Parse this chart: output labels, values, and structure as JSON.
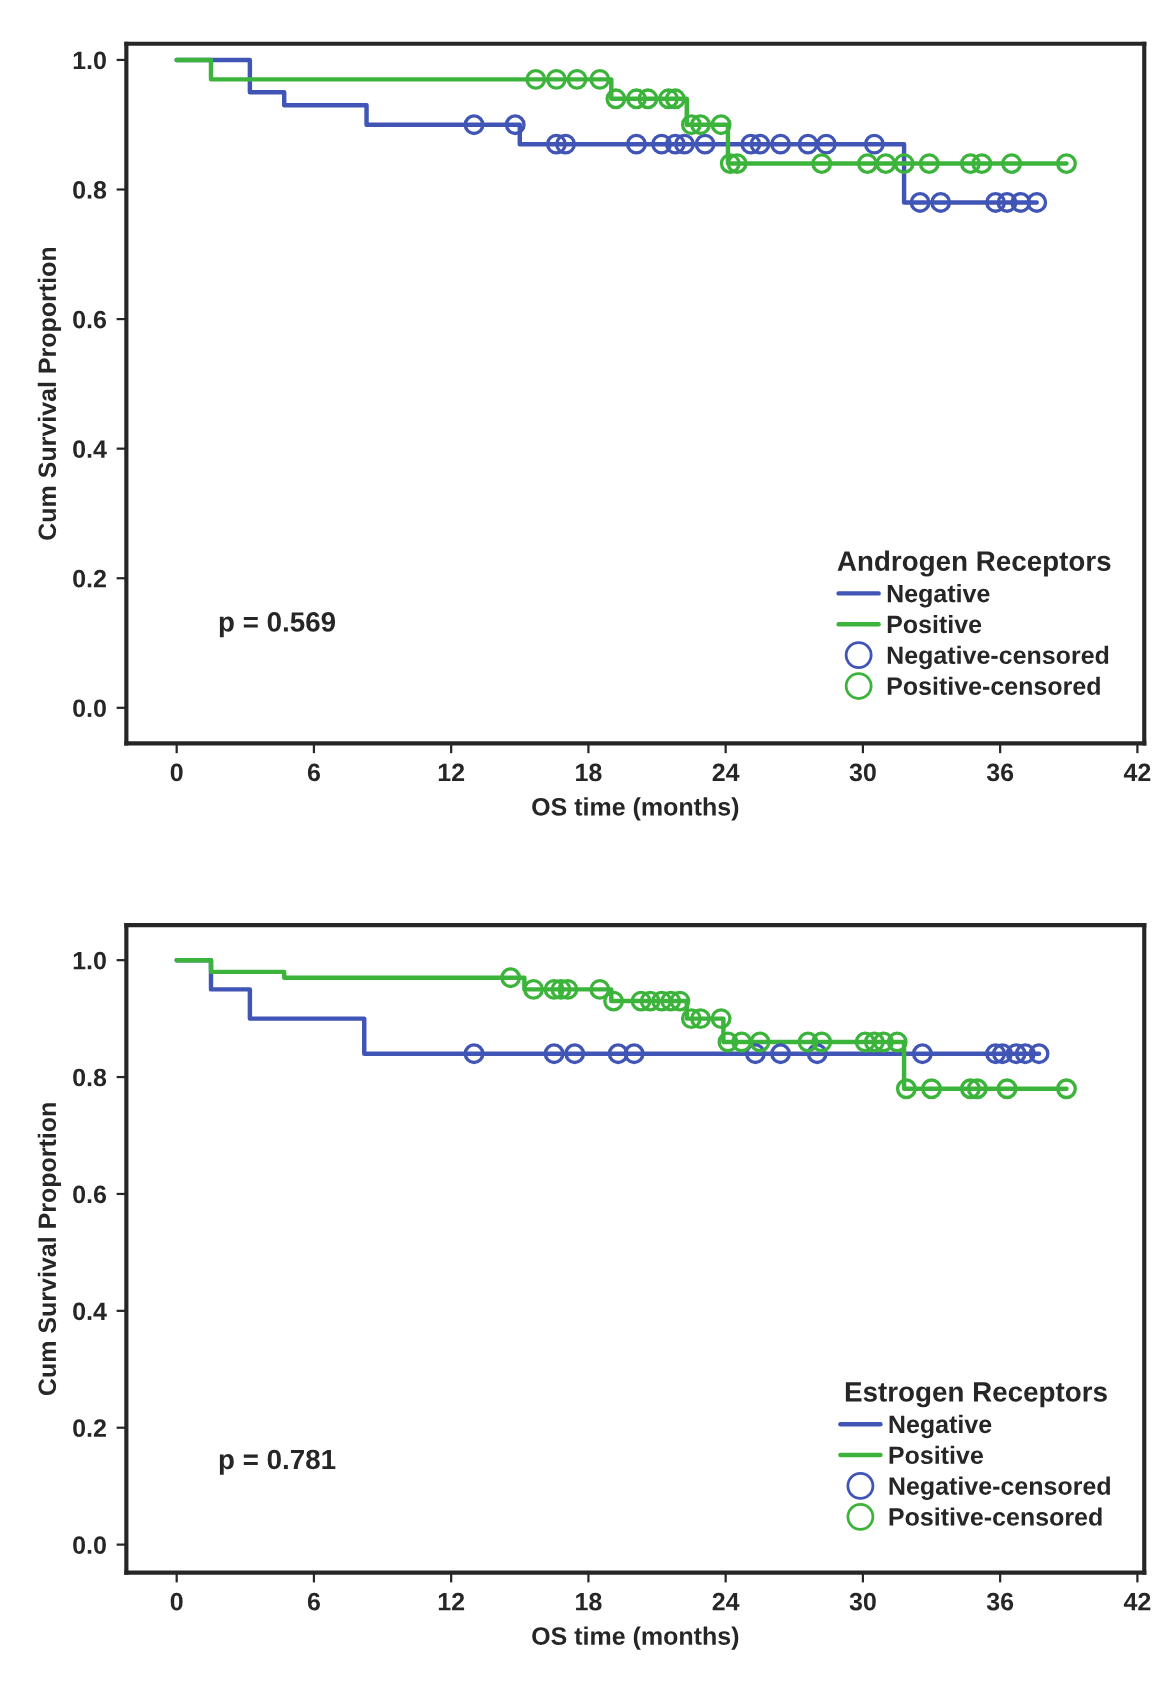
{
  "chart_data": [
    {
      "type": "step",
      "xlabel": "OS time (months)",
      "ylabel": "Cum Survival Proportion",
      "legend_title": "Androgen Receptors",
      "legend": "bottom right",
      "annotations": [
        "p = 0.569"
      ],
      "xlim": [
        -2.2,
        42.3
      ],
      "xticks": [
        0,
        6,
        12,
        18,
        24,
        30,
        36,
        42
      ],
      "ylim": [
        -0.055,
        1.025
      ],
      "yticks": [
        {
          "value": 0,
          "label": "0.0"
        },
        {
          "value": 0.2,
          "label": "0.2"
        },
        {
          "value": 0.4,
          "label": "0.4"
        },
        {
          "value": 0.6,
          "label": "0.6"
        },
        {
          "value": 0.8,
          "label": "0.8"
        },
        {
          "value": 1,
          "label": "1.0"
        }
      ],
      "series": [
        {
          "name": "Negative",
          "color": "#4055b5",
          "x": [
            0,
            3.2,
            4.7,
            8.3,
            15.0,
            31.8,
            37.6
          ],
          "values": [
            1.0,
            0.95,
            0.93,
            0.9,
            0.87,
            0.78,
            0.78
          ]
        },
        {
          "name": "Positive",
          "color": "#3cb43c",
          "x": [
            0,
            1.5,
            19.0,
            22.3,
            24.1,
            38.9
          ],
          "values": [
            1.0,
            0.97,
            0.94,
            0.9,
            0.84,
            0.84
          ]
        },
        {
          "name": "Negative-censored",
          "type": "scatter",
          "marker": "circle",
          "color": "#4055b5",
          "x": [
            13.0,
            14.8,
            16.6,
            17.0,
            20.1,
            21.2,
            21.8,
            22.2,
            23.1,
            25.1,
            25.5,
            26.4,
            27.6,
            28.4,
            30.5,
            32.5,
            33.4,
            35.8,
            36.3,
            36.9,
            37.6
          ],
          "values": [
            0.9,
            0.9,
            0.87,
            0.87,
            0.87,
            0.87,
            0.87,
            0.87,
            0.87,
            0.87,
            0.87,
            0.87,
            0.87,
            0.87,
            0.87,
            0.78,
            0.78,
            0.78,
            0.78,
            0.78,
            0.78
          ]
        },
        {
          "name": "Positive-censored",
          "type": "scatter",
          "marker": "circle",
          "color": "#3cb43c",
          "x": [
            15.7,
            16.6,
            17.5,
            18.5,
            19.2,
            20.1,
            20.6,
            21.5,
            21.8,
            22.5,
            22.9,
            23.8,
            24.2,
            24.5,
            28.2,
            30.2,
            31.0,
            31.8,
            32.9,
            34.7,
            35.2,
            36.5,
            38.9
          ],
          "values": [
            0.97,
            0.97,
            0.97,
            0.97,
            0.94,
            0.94,
            0.94,
            0.94,
            0.94,
            0.9,
            0.9,
            0.9,
            0.84,
            0.84,
            0.84,
            0.84,
            0.84,
            0.84,
            0.84,
            0.84,
            0.84,
            0.84,
            0.84
          ]
        }
      ]
    },
    {
      "type": "step",
      "xlabel": "OS time (months)",
      "ylabel": "Cum Survival Proportion",
      "legend_title": "Estrogen Receptors",
      "legend": "bottom right",
      "annotations": [
        "p = 0.781"
      ],
      "xlim": [
        -2.2,
        42.3
      ],
      "xticks": [
        0,
        6,
        12,
        18,
        24,
        30,
        36,
        42
      ],
      "ylim": [
        -0.048,
        1.06
      ],
      "yticks": [
        {
          "value": 0,
          "label": "0.0"
        },
        {
          "value": 0.2,
          "label": "0.2"
        },
        {
          "value": 0.4,
          "label": "0.4"
        },
        {
          "value": 0.6,
          "label": "0.6"
        },
        {
          "value": 0.8,
          "label": "0.8"
        },
        {
          "value": 1,
          "label": "1.0"
        }
      ],
      "series": [
        {
          "name": "Negative",
          "color": "#4055b5",
          "x": [
            0,
            1.5,
            3.2,
            8.2,
            37.7
          ],
          "values": [
            1.0,
            0.95,
            0.9,
            0.84,
            0.84
          ]
        },
        {
          "name": "Positive",
          "color": "#3cb43c",
          "x": [
            0,
            1.5,
            4.7,
            15.2,
            19.0,
            22.3,
            23.9,
            31.8,
            38.9
          ],
          "values": [
            1.0,
            0.98,
            0.97,
            0.95,
            0.93,
            0.9,
            0.86,
            0.78,
            0.78
          ]
        },
        {
          "name": "Negative-censored",
          "type": "scatter",
          "marker": "circle",
          "color": "#4055b5",
          "x": [
            13.0,
            16.5,
            17.4,
            19.3,
            20.0,
            25.3,
            26.4,
            28.0,
            32.6,
            35.8,
            36.1,
            36.7,
            37.1,
            37.7
          ],
          "values": [
            0.84,
            0.84,
            0.84,
            0.84,
            0.84,
            0.84,
            0.84,
            0.84,
            0.84,
            0.84,
            0.84,
            0.84,
            0.84,
            0.84
          ]
        },
        {
          "name": "Positive-censored",
          "type": "scatter",
          "marker": "circle",
          "color": "#3cb43c",
          "x": [
            14.6,
            15.6,
            16.5,
            16.8,
            17.1,
            18.5,
            19.1,
            20.3,
            20.7,
            21.2,
            21.6,
            22.0,
            22.5,
            22.9,
            23.8,
            24.1,
            24.7,
            25.5,
            27.6,
            28.2,
            30.1,
            30.5,
            30.9,
            31.5,
            31.9,
            33.0,
            34.7,
            35.0,
            36.3,
            38.9
          ],
          "values": [
            0.97,
            0.95,
            0.95,
            0.95,
            0.95,
            0.95,
            0.93,
            0.93,
            0.93,
            0.93,
            0.93,
            0.93,
            0.9,
            0.9,
            0.9,
            0.86,
            0.86,
            0.86,
            0.86,
            0.86,
            0.86,
            0.86,
            0.86,
            0.86,
            0.78,
            0.78,
            0.78,
            0.78,
            0.78,
            0.78
          ]
        }
      ]
    }
  ]
}
